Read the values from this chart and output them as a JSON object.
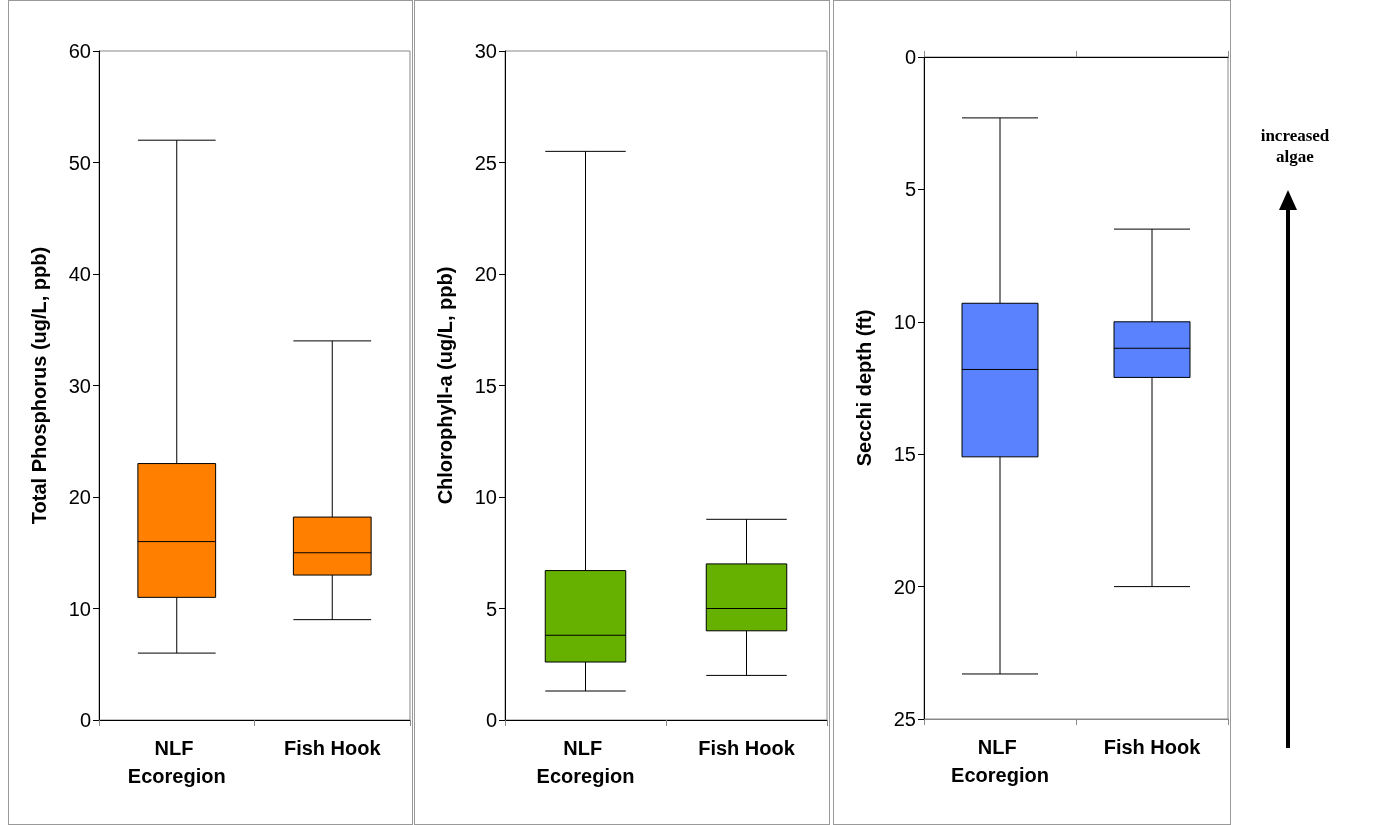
{
  "chart_data": [
    {
      "type": "box",
      "ylabel": "Total Phosphorus (ug/L, ppb)",
      "categories": [
        "NLF Ecoregion",
        "Fish Hook"
      ],
      "ylim": [
        0,
        60
      ],
      "yticks": [
        0,
        10,
        20,
        30,
        40,
        50,
        60
      ],
      "grid": false,
      "series": [
        {
          "color": "#ff8000",
          "boxes": [
            {
              "low": 6,
              "q1": 11,
              "median": 16,
              "q3": 23,
              "high": 52
            },
            {
              "low": 9,
              "q1": 13,
              "median": 15,
              "q3": 18.2,
              "high": 34
            }
          ]
        }
      ]
    },
    {
      "type": "box",
      "ylabel": "Chlorophyll-a (ug/L, ppb)",
      "categories": [
        "NLF Ecoregion",
        "Fish Hook"
      ],
      "ylim": [
        0,
        30
      ],
      "yticks": [
        0,
        5,
        10,
        15,
        20,
        25,
        30
      ],
      "grid": false,
      "series": [
        {
          "color": "#66b000",
          "boxes": [
            {
              "low": 1.3,
              "q1": 2.6,
              "median": 3.8,
              "q3": 6.7,
              "high": 25.5
            },
            {
              "low": 2,
              "q1": 4,
              "median": 5,
              "q3": 7,
              "high": 9
            }
          ]
        }
      ]
    },
    {
      "type": "box",
      "ylabel": "Secchi depth (ft)",
      "categories": [
        "NLF Ecoregion",
        "Fish Hook"
      ],
      "ylim": [
        25,
        0
      ],
      "yticks": [
        0,
        5,
        10,
        15,
        20,
        25
      ],
      "grid": false,
      "annotations": [
        "increased algae"
      ],
      "series": [
        {
          "color": "#5a82ff",
          "boxes": [
            {
              "low": 2.3,
              "q1": 9.3,
              "median": 11.8,
              "q3": 15.1,
              "high": 23.3
            },
            {
              "low": 6.5,
              "q1": 10,
              "median": 11,
              "q3": 12.1,
              "high": 20
            }
          ]
        }
      ]
    }
  ]
}
